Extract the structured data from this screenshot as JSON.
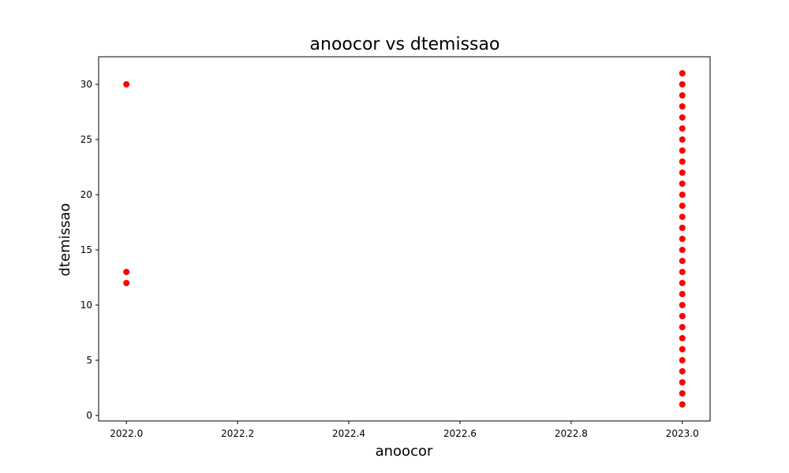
{
  "chart_data": {
    "type": "scatter",
    "title": "anoocor vs dtemissao",
    "xlabel": "anoocor",
    "ylabel": "dtemissao",
    "xlim": [
      1.9765,
      2023.05
    ],
    "ylim": [
      -0.5,
      32.5
    ],
    "xticks": [
      2022.0,
      2022.2,
      2022.4,
      2022.6,
      2022.8,
      2023.0
    ],
    "xtick_labels": [
      "2022.0",
      "2022.2",
      "2022.4",
      "2022.6",
      "2022.8",
      "2023.0"
    ],
    "yticks": [
      0,
      5,
      10,
      15,
      20,
      25,
      30
    ],
    "ytick_labels": [
      "0",
      "5",
      "10",
      "15",
      "20",
      "25",
      "30"
    ],
    "grid": false,
    "marker_color": "#ff0000",
    "series": [
      {
        "x": [
          2022.0,
          2022.0,
          2022.0,
          2023.0,
          2023.0,
          2023.0,
          2023.0,
          2023.0,
          2023.0,
          2023.0,
          2023.0,
          2023.0,
          2023.0,
          2023.0,
          2023.0,
          2023.0,
          2023.0,
          2023.0,
          2023.0,
          2023.0,
          2023.0,
          2023.0,
          2023.0,
          2023.0,
          2023.0,
          2023.0,
          2023.0,
          2023.0,
          2023.0,
          2023.0,
          2023.0,
          2023.0,
          2023.0,
          2023.0
        ],
        "y": [
          12,
          13,
          30,
          1,
          2,
          3,
          4,
          5,
          6,
          7,
          8,
          9,
          10,
          11,
          12,
          13,
          14,
          15,
          16,
          17,
          18,
          19,
          20,
          21,
          22,
          23,
          24,
          25,
          26,
          27,
          28,
          29,
          30,
          31
        ]
      }
    ]
  }
}
